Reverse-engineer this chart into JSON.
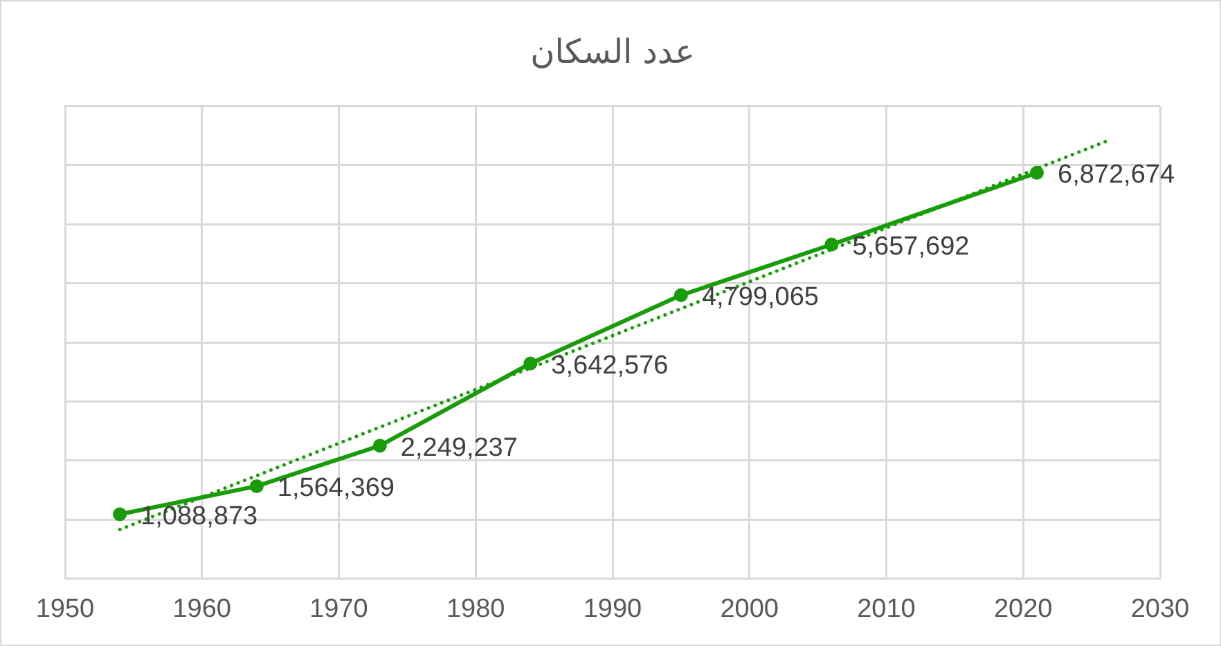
{
  "chart_data": {
    "type": "line",
    "title": "عدد السكان",
    "x": [
      1954,
      1964,
      1973,
      1984,
      1995,
      2006,
      2021
    ],
    "series": [
      {
        "color": "#1a9c0a",
        "marker": "circle",
        "line_style": "solid",
        "values": [
          1088873,
          1564369,
          2249237,
          3642576,
          4799065,
          5657692,
          6872674
        ],
        "value_labels": [
          "1,088,873",
          "1,564,369",
          "2,249,237",
          "3,642,576",
          "4,799,065",
          "5,657,692",
          "6,872,674"
        ]
      },
      {
        "type": "line",
        "x": [
          1954,
          2026
        ],
        "color": "#1a9c0a",
        "marker": "none",
        "line_style": "dotted",
        "values": [
          830000,
          7400000
        ]
      }
    ],
    "xlim": [
      1950,
      2030
    ],
    "xticks": [
      1950,
      1960,
      1970,
      1980,
      1990,
      2000,
      2010,
      2020,
      2030
    ],
    "ylim": [
      0,
      8000000
    ],
    "yticks": [
      {
        "value": 0,
        "label": null
      },
      {
        "value": 1000000,
        "label": null
      },
      {
        "value": 2000000,
        "label": null
      },
      {
        "value": 3000000,
        "label": null
      },
      {
        "value": 4000000,
        "label": null
      },
      {
        "value": 5000000,
        "label": null
      },
      {
        "value": 6000000,
        "label": null
      },
      {
        "value": 7000000,
        "label": null
      },
      {
        "value": 8000000,
        "label": null
      }
    ],
    "tick_labels": "x",
    "grid": true,
    "legend": false
  }
}
